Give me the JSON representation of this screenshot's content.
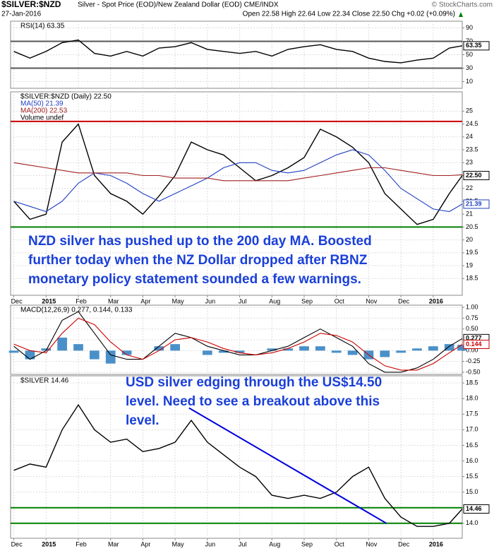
{
  "header": {
    "symbol": "$SILVER:$NZD",
    "description": "Silver - Spot Price (EOD)/New Zealand Dollar (EOD) CME/INDX",
    "date": "27-Jan-2016",
    "quote": "Open 22.58 High 22.64 Low 22.34 Close 22.50 Chg +0.02 (+0.09%)",
    "source": "© StockCharts.com"
  },
  "chart_data": [
    {
      "type": "line",
      "title": "RSI(14) 63.35",
      "x": [
        0,
        0.5,
        1,
        1.5,
        2,
        2.5,
        3,
        3.5,
        4,
        4.5,
        5,
        5.5,
        6,
        6.5,
        7,
        7.5,
        8,
        8.5,
        9,
        9.5,
        10,
        10.5,
        11,
        11.5,
        12,
        12.5,
        13,
        13.5,
        13.9
      ],
      "xlim": [
        -0.1,
        13.9
      ],
      "ylim": [
        0,
        100
      ],
      "yticks": [
        10,
        30,
        50,
        70,
        90
      ],
      "hlines": [
        {
          "value": 70,
          "color": "#555555"
        },
        {
          "value": 30,
          "color": "#555555"
        }
      ],
      "end_labels": [
        {
          "value": 63.35,
          "label": "63.35",
          "color": "#000000"
        }
      ],
      "series": [
        {
          "name": "RSI",
          "color": "#000000",
          "values": [
            55,
            45,
            55,
            68,
            72,
            52,
            48,
            55,
            48,
            60,
            62,
            68,
            58,
            55,
            52,
            55,
            48,
            58,
            62,
            65,
            58,
            55,
            45,
            40,
            38,
            42,
            45,
            60,
            63.35
          ]
        }
      ]
    },
    {
      "type": "line",
      "title": "$SILVER:$NZD (Daily) 22.50",
      "x": [
        0,
        0.5,
        1,
        1.5,
        2,
        2.5,
        3,
        3.5,
        4,
        4.5,
        5,
        5.5,
        6,
        6.5,
        7,
        7.5,
        8,
        8.5,
        9,
        9.5,
        10,
        10.5,
        11,
        11.5,
        12,
        12.5,
        13,
        13.5,
        13.9
      ],
      "xlim": [
        -0.1,
        13.9
      ],
      "ylim": [
        17.85,
        25.75
      ],
      "yticks": [
        18.5,
        19.0,
        19.5,
        20.0,
        20.5,
        21.0,
        21.5,
        22.0,
        22.5,
        23.0,
        23.5,
        24.0,
        24.5,
        25.0
      ],
      "xticks": [
        {
          "value": 0,
          "label": "Dec"
        },
        {
          "value": 1,
          "label": "2015"
        },
        {
          "value": 2,
          "label": "Feb"
        },
        {
          "value": 3,
          "label": "Mar"
        },
        {
          "value": 4,
          "label": "Apr"
        },
        {
          "value": 5,
          "label": "May"
        },
        {
          "value": 6,
          "label": "Jun"
        },
        {
          "value": 7,
          "label": "Jul"
        },
        {
          "value": 8,
          "label": "Aug"
        },
        {
          "value": 9,
          "label": "Sep"
        },
        {
          "value": 10,
          "label": "Oct"
        },
        {
          "value": 11,
          "label": "Nov"
        },
        {
          "value": 12,
          "label": "Dec"
        },
        {
          "value": 13,
          "label": "2016"
        }
      ],
      "hlines": [
        {
          "value": 24.6,
          "color": "#cc0000"
        },
        {
          "value": 20.5,
          "color": "#008000"
        }
      ],
      "end_labels": [
        {
          "value": 22.5,
          "label": "22.50",
          "color": "#000000"
        },
        {
          "value": 21.39,
          "label": "21.39",
          "color": "#2040c0"
        }
      ],
      "legend_extra": [
        "Volume undef"
      ],
      "annotation": [
        "NZD silver has pushed up to the 200 day MA. Boosted",
        "further today when the NZ Dollar dropped after RBNZ",
        "monetary policy statement sounded a few warnings."
      ],
      "series": [
        {
          "name": "$SILVER:$NZD",
          "color": "#000000",
          "values": [
            21.5,
            20.8,
            21.0,
            23.8,
            24.5,
            22.5,
            21.8,
            21.5,
            21.0,
            21.7,
            22.5,
            23.8,
            23.5,
            23.3,
            22.8,
            22.3,
            22.5,
            22.8,
            23.2,
            24.3,
            24.0,
            23.6,
            23.0,
            21.8,
            21.2,
            20.6,
            20.8,
            21.8,
            22.5
          ]
        },
        {
          "name": "MA(50) 21.39",
          "color": "#2040c0",
          "values": [
            21.5,
            21.3,
            21.1,
            21.5,
            22.2,
            22.6,
            22.5,
            22.2,
            21.8,
            21.5,
            21.8,
            22.1,
            22.4,
            22.8,
            23.0,
            23.0,
            22.7,
            22.6,
            22.7,
            23.0,
            23.3,
            23.5,
            23.3,
            22.7,
            22.0,
            21.6,
            21.2,
            21.1,
            21.39
          ]
        },
        {
          "name": "MA(200) 22.53",
          "color": "#a02020",
          "values": [
            23.0,
            22.9,
            22.8,
            22.7,
            22.6,
            22.6,
            22.6,
            22.6,
            22.5,
            22.5,
            22.4,
            22.4,
            22.4,
            22.3,
            22.3,
            22.3,
            22.3,
            22.3,
            22.4,
            22.5,
            22.6,
            22.7,
            22.8,
            22.8,
            22.7,
            22.6,
            22.5,
            22.5,
            22.53
          ]
        }
      ]
    },
    {
      "type": "line",
      "title": "MACD(12,26,9) 0.277, 0.144, 0.133",
      "x": [
        0,
        0.5,
        1,
        1.5,
        2,
        2.5,
        3,
        3.5,
        4,
        4.5,
        5,
        5.5,
        6,
        6.5,
        7,
        7.5,
        8,
        8.5,
        9,
        9.5,
        10,
        10.5,
        11,
        11.5,
        12,
        12.5,
        13,
        13.5,
        13.9
      ],
      "xlim": [
        -0.1,
        13.9
      ],
      "ylim": [
        -0.55,
        1.05
      ],
      "yticks": [
        {
          "value": -0.5,
          "label": "-0.50"
        },
        {
          "value": -0.25,
          "label": "-0.25"
        },
        {
          "value": 0,
          "label": "0.00"
        },
        0.25,
        {
          "value": 0.5,
          "label": "0.50"
        },
        0.75,
        {
          "value": 1,
          "label": "1.00"
        }
      ],
      "end_labels": [
        {
          "value": 0.277,
          "label": "0.277",
          "color": "#000000"
        },
        {
          "value": 0.144,
          "label": "0.144",
          "color": "#cc0000"
        }
      ],
      "series": [
        {
          "name": "Histogram",
          "type": "bar",
          "color": "#4a90c8",
          "values": [
            -0.05,
            -0.2,
            0.05,
            0.3,
            0.15,
            -0.2,
            -0.3,
            -0.1,
            0.0,
            0.1,
            0.15,
            0.0,
            -0.1,
            -0.05,
            -0.05,
            0.0,
            0.05,
            0.05,
            0.1,
            0.1,
            -0.05,
            -0.1,
            -0.2,
            -0.15,
            -0.05,
            0.05,
            0.1,
            0.15,
            0.133
          ]
        },
        {
          "name": "MACD",
          "color": "#000000",
          "values": [
            0.1,
            -0.2,
            0.0,
            0.7,
            0.9,
            0.4,
            -0.1,
            -0.2,
            -0.2,
            0.1,
            0.4,
            0.3,
            0.1,
            0.0,
            -0.1,
            -0.1,
            0.0,
            0.1,
            0.3,
            0.5,
            0.3,
            0.1,
            -0.3,
            -0.5,
            -0.5,
            -0.4,
            -0.2,
            0.1,
            0.277
          ]
        },
        {
          "name": "Signal",
          "color": "#cc0000",
          "values": [
            0.15,
            0.0,
            -0.05,
            0.4,
            0.75,
            0.6,
            0.2,
            -0.1,
            -0.2,
            0.0,
            0.25,
            0.3,
            0.2,
            0.05,
            -0.05,
            -0.1,
            -0.05,
            0.05,
            0.2,
            0.4,
            0.35,
            0.2,
            -0.1,
            -0.35,
            -0.45,
            -0.45,
            -0.3,
            -0.05,
            0.144
          ]
        }
      ]
    },
    {
      "type": "line",
      "title": "$SILVER 14.46",
      "x": [
        0,
        0.5,
        1,
        1.5,
        2,
        2.5,
        3,
        3.5,
        4,
        4.5,
        5,
        5.5,
        6,
        6.5,
        7,
        7.5,
        8,
        8.5,
        9,
        9.5,
        10,
        10.5,
        11,
        11.5,
        12,
        12.5,
        13,
        13.5,
        13.9
      ],
      "xlim": [
        -0.1,
        13.9
      ],
      "ylim": [
        13.52,
        18.73
      ],
      "yticks": [
        {
          "value": 14,
          "label": "14.0"
        },
        14.5,
        {
          "value": 15,
          "label": "15.0"
        },
        15.5,
        {
          "value": 16,
          "label": "16.0"
        },
        16.5,
        {
          "value": 17,
          "label": "17.0"
        },
        17.5,
        {
          "value": 18,
          "label": "18.0"
        },
        18.5
      ],
      "xticks": [
        {
          "value": 0,
          "label": "Dec"
        },
        {
          "value": 1,
          "label": "2015"
        },
        {
          "value": 2,
          "label": "Feb"
        },
        {
          "value": 3,
          "label": "Mar"
        },
        {
          "value": 4,
          "label": "Apr"
        },
        {
          "value": 5,
          "label": "May"
        },
        {
          "value": 6,
          "label": "Jun"
        },
        {
          "value": 7,
          "label": "Jul"
        },
        {
          "value": 8,
          "label": "Aug"
        },
        {
          "value": 9,
          "label": "Sep"
        },
        {
          "value": 10,
          "label": "Oct"
        },
        {
          "value": 11,
          "label": "Nov"
        },
        {
          "value": 12,
          "label": "Dec"
        },
        {
          "value": 13,
          "label": "2016"
        }
      ],
      "hlines": [
        {
          "value": 14.5,
          "color": "#008000"
        },
        {
          "value": 14.0,
          "color": "#008000"
        }
      ],
      "trendline": {
        "x": [
          5.43,
          11.55
        ],
        "y": [
          17.7,
          14.0
        ],
        "color": "#0000dd"
      },
      "end_labels": [
        {
          "value": 14.46,
          "label": "14.46",
          "color": "#000000"
        }
      ],
      "annotation": [
        "USD silver edging through the US$14.50",
        "level. Need to see a breakout above this",
        "level."
      ],
      "series": [
        {
          "name": "$SILVER",
          "color": "#000000",
          "values": [
            15.7,
            15.9,
            15.8,
            17.0,
            17.8,
            17.0,
            16.6,
            16.7,
            16.3,
            16.4,
            16.6,
            17.3,
            16.6,
            16.2,
            15.8,
            15.5,
            14.9,
            14.8,
            14.9,
            14.8,
            15.0,
            15.5,
            15.8,
            14.8,
            14.2,
            13.9,
            13.9,
            14.0,
            14.46
          ]
        }
      ]
    }
  ]
}
